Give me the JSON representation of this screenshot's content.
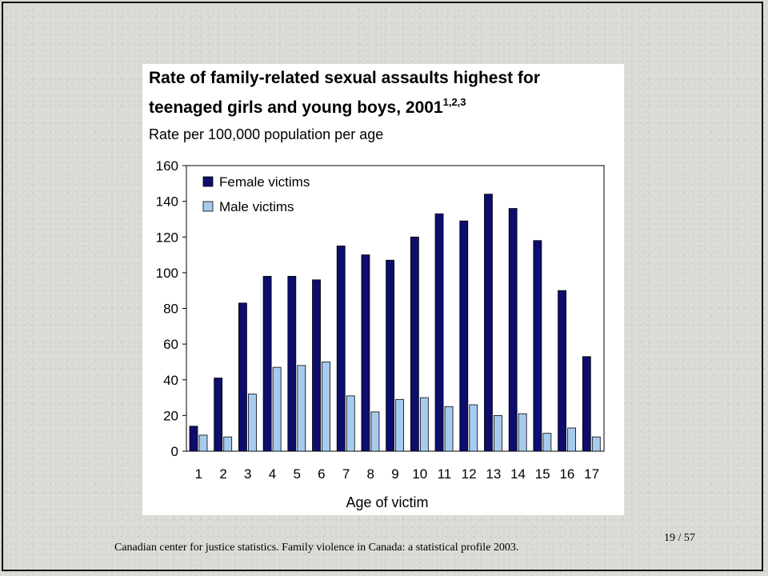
{
  "slide": {
    "citation": "Canadian center for justice statistics. Family violence in Canada: a statistical profile 2003.",
    "page_current": "19",
    "page_separator": "/",
    "page_total": "57"
  },
  "colors": {
    "female": "#0d0d6e",
    "male": "#a6cbee"
  },
  "chart_data": {
    "type": "bar",
    "title_line1": "Rate of family-related sexual assaults highest for",
    "title_line2": "teenaged girls and young boys, 2001",
    "title_superscript": "1,2,3",
    "subtitle": "Rate per 100,000 population per age",
    "xlabel": "Age of victim",
    "ylabel": "",
    "ylim": [
      0,
      160
    ],
    "yticks": [
      "0",
      "20",
      "40",
      "60",
      "80",
      "100",
      "120",
      "140",
      "160"
    ],
    "categories": [
      "1",
      "2",
      "3",
      "4",
      "5",
      "6",
      "7",
      "8",
      "9",
      "10",
      "11",
      "12",
      "13",
      "14",
      "15",
      "16",
      "17"
    ],
    "legend_position": "top-left",
    "grid": false,
    "series": [
      {
        "name": "Female victims",
        "values": [
          14,
          41,
          83,
          98,
          98,
          96,
          115,
          110,
          107,
          120,
          133,
          129,
          144,
          136,
          118,
          90,
          53
        ]
      },
      {
        "name": "Male victims",
        "values": [
          9,
          8,
          32,
          47,
          48,
          50,
          31,
          22,
          29,
          30,
          25,
          26,
          20,
          21,
          10,
          13,
          8
        ]
      }
    ]
  }
}
